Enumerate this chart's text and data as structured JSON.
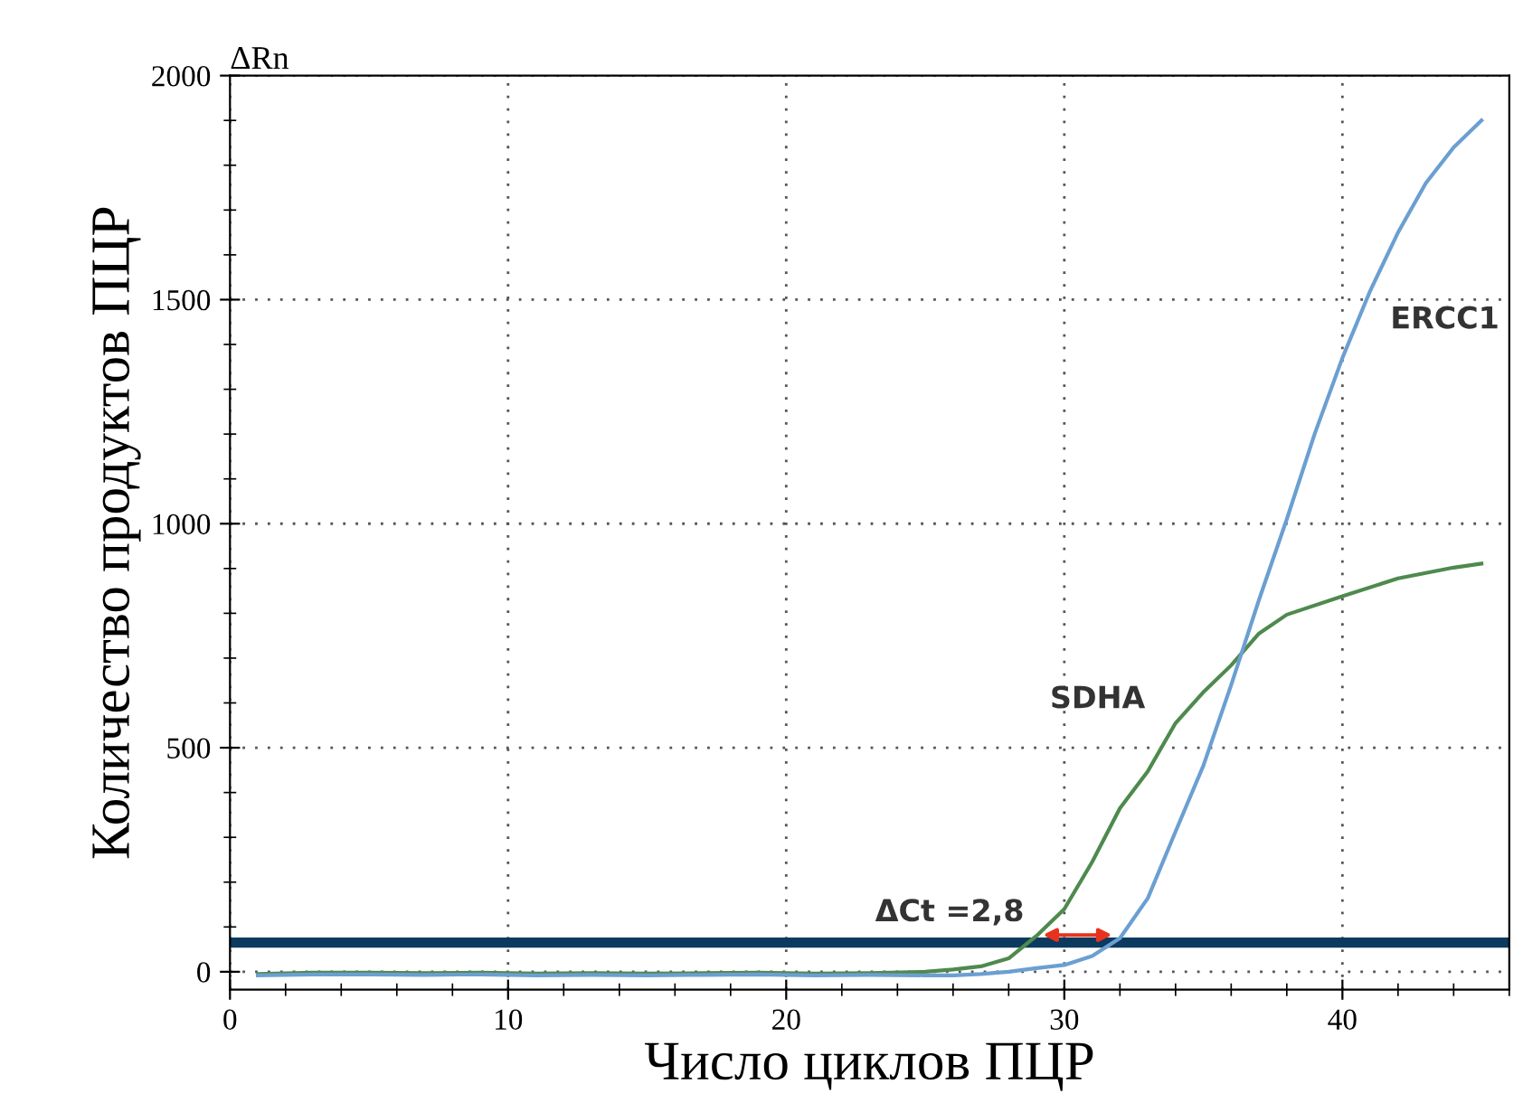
{
  "chart_data": {
    "type": "line",
    "xlabel": "Число циклов ПЦР",
    "ylabel": "Количество продуктов ПЦР",
    "annotations": [
      "ΔRn",
      {
        "text": "ΔCt =2,8",
        "x": 29.2,
        "y": 99
      }
    ],
    "series": [
      {
        "name": "SDHA",
        "color": "#4e8a4e",
        "x": [
          1,
          3,
          5,
          7,
          9,
          11,
          13,
          15,
          17,
          19,
          21,
          23,
          25,
          26,
          27,
          28,
          29,
          30,
          31,
          32,
          33,
          34,
          35,
          36,
          37,
          38,
          40,
          42,
          44,
          45
        ],
        "values": [
          -5,
          -2,
          -2,
          -3,
          -2,
          -4,
          -3,
          -4,
          -3,
          -2,
          -4,
          -3,
          0,
          5,
          12,
          30,
          80,
          140,
          245,
          365,
          447,
          555,
          624,
          684,
          755,
          797,
          838,
          878,
          902,
          911
        ]
      },
      {
        "name": "ERCC1",
        "color": "#6b9fd1",
        "x": [
          1,
          3,
          5,
          7,
          9,
          11,
          13,
          15,
          17,
          19,
          21,
          23,
          25,
          26,
          27,
          28,
          29,
          30,
          31,
          32,
          33,
          34,
          35,
          36,
          37,
          38,
          39,
          40,
          41,
          42,
          43,
          44,
          45
        ],
        "values": [
          -8,
          -6,
          -6,
          -7,
          -6,
          -8,
          -7,
          -8,
          -7,
          -6,
          -8,
          -7,
          -8,
          -8,
          -5,
          0,
          8,
          15,
          35,
          75,
          164,
          313,
          460,
          640,
          830,
          1010,
          1200,
          1370,
          1520,
          1650,
          1760,
          1840,
          1900
        ]
      }
    ],
    "xlim": [
      0,
      46
    ],
    "ylim": [
      -40,
      2000
    ],
    "xticks": [
      0,
      10,
      20,
      30,
      40
    ],
    "yticks": [
      0,
      500,
      1000,
      1500,
      2000
    ],
    "ref_lines": [
      {
        "axis": "y",
        "value": 65,
        "color": "#0b3a5e"
      }
    ],
    "grid": true,
    "line_style": "solid",
    "marker": "none"
  }
}
